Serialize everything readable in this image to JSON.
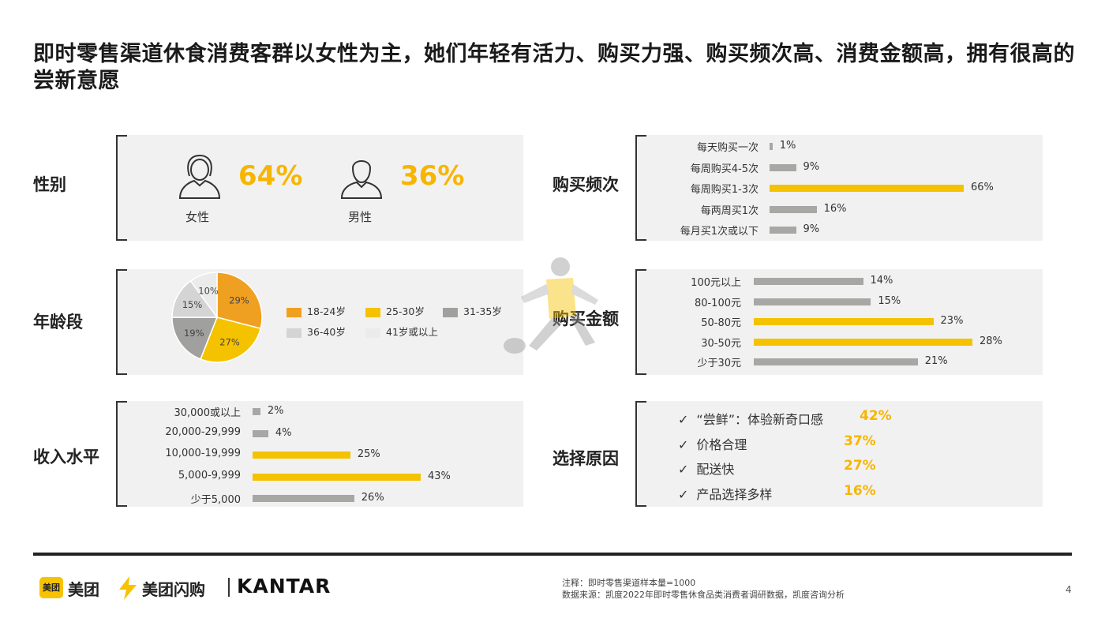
{
  "title": "即时零售渠道休食消费客群以女性为主，她们年轻有活力、购买力强、购买频次高、消费金额高，拥有很高的尝新意愿",
  "sections": {
    "gender": "性别",
    "age": "年龄段",
    "income": "收入水平",
    "frequency": "购买频次",
    "amount": "购买金额",
    "reason": "选择原因"
  },
  "colors": {
    "accent": "#f5c200",
    "gray_bar": "#a7a7a5",
    "panel": "#f1f1f1"
  },
  "gender": {
    "female": {
      "label": "女性",
      "value": "64%",
      "icon": "female-person-icon"
    },
    "male": {
      "label": "男性",
      "value": "36%",
      "icon": "male-person-icon"
    }
  },
  "chart_data": [
    {
      "type": "pie",
      "name": "age",
      "categories": [
        "18-24岁",
        "25-30岁",
        "31-35岁",
        "36-40岁",
        "41岁或以上"
      ],
      "values": [
        29,
        27,
        19,
        15,
        10
      ],
      "labels": [
        "29%",
        "27%",
        "19%",
        "15%",
        "10%"
      ],
      "colors": [
        "#f0a020",
        "#f5c200",
        "#a0a09e",
        "#d4d4d4",
        "#ebebeb"
      ],
      "legend": "right"
    },
    {
      "type": "bar",
      "name": "income",
      "categories": [
        "30,000或以上",
        "20,000-29,999",
        "10,000-19,999",
        "5,000-9,999",
        "少于5,000"
      ],
      "values": [
        2,
        4,
        25,
        43,
        26
      ],
      "labels": [
        "2%",
        "4%",
        "25%",
        "43%",
        "26%"
      ],
      "highlight": [
        false,
        false,
        true,
        true,
        false
      ],
      "max": 43
    },
    {
      "type": "bar",
      "name": "frequency",
      "categories": [
        "每天购买一次",
        "每周购买4-5次",
        "每周购买1-3次",
        "每两周买1次",
        "每月买1次或以下"
      ],
      "values": [
        1,
        9,
        66,
        16,
        9
      ],
      "labels": [
        "1%",
        "9%",
        "66%",
        "16%",
        "9%"
      ],
      "highlight": [
        false,
        false,
        true,
        false,
        false
      ],
      "max": 66
    },
    {
      "type": "bar",
      "name": "amount",
      "categories": [
        "100元以上",
        "80-100元",
        "50-80元",
        "30-50元",
        "少于30元"
      ],
      "values": [
        14,
        15,
        23,
        28,
        21
      ],
      "labels": [
        "14%",
        "15%",
        "23%",
        "28%",
        "21%"
      ],
      "highlight": [
        false,
        false,
        true,
        true,
        false
      ],
      "max": 28
    }
  ],
  "reasons": [
    {
      "text": "“尝鲜”：体验新奇口感",
      "value": "42%"
    },
    {
      "text": "价格合理",
      "value": "37%"
    },
    {
      "text": "配送快",
      "value": "27%"
    },
    {
      "text": "产品选择多样",
      "value": "16%"
    }
  ],
  "check": "✓",
  "footer": {
    "meituan": "美团",
    "meituan_box": "美团",
    "shangou": "美团闪购",
    "kantar": "KANTAR",
    "note1": "注释：即时零售渠道样本量=1000",
    "note2": "数据来源：凯度2022年即时零售休食品类消费者调研数据，凯度咨询分析",
    "page": "4"
  }
}
